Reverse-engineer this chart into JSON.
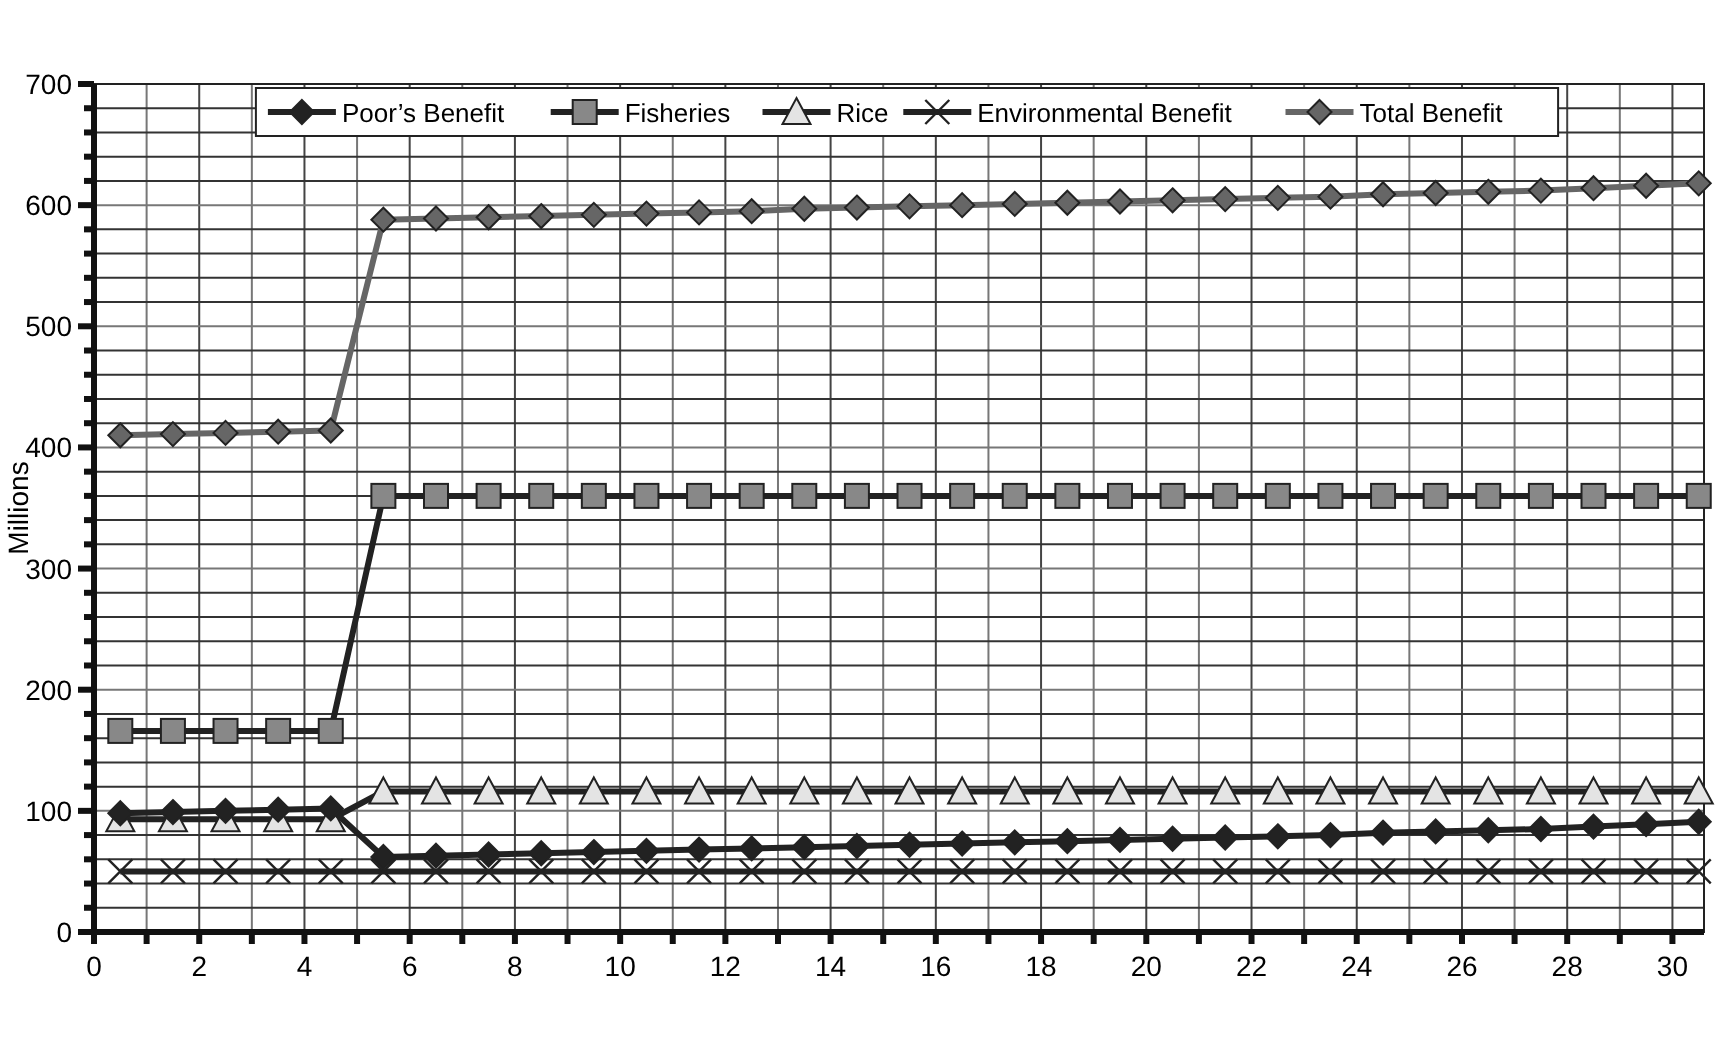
{
  "chart_data": {
    "type": "line",
    "ylabel": "Millions",
    "xlim": [
      0,
      30.6
    ],
    "ylim": [
      0,
      700
    ],
    "xticks": [
      0,
      {
        "value": 1,
        "label": null
      },
      2,
      {
        "value": 3,
        "label": null
      },
      4,
      {
        "value": 5,
        "label": null
      },
      6,
      {
        "value": 7,
        "label": null
      },
      8,
      {
        "value": 9,
        "label": null
      },
      10,
      {
        "value": 11,
        "label": null
      },
      12,
      {
        "value": 13,
        "label": null
      },
      14,
      {
        "value": 15,
        "label": null
      },
      16,
      {
        "value": 17,
        "label": null
      },
      18,
      {
        "value": 19,
        "label": null
      },
      20,
      {
        "value": 21,
        "label": null
      },
      22,
      {
        "value": 23,
        "label": null
      },
      24,
      {
        "value": 25,
        "label": null
      },
      26,
      {
        "value": 27,
        "label": null
      },
      28,
      {
        "value": 29,
        "label": null
      },
      30
    ],
    "yticks": [
      0,
      {
        "value": 20,
        "label": null
      },
      {
        "value": 40,
        "label": null
      },
      {
        "value": 60,
        "label": null
      },
      {
        "value": 80,
        "label": null
      },
      100,
      {
        "value": 120,
        "label": null
      },
      {
        "value": 140,
        "label": null
      },
      {
        "value": 160,
        "label": null
      },
      {
        "value": 180,
        "label": null
      },
      200,
      {
        "value": 220,
        "label": null
      },
      {
        "value": 240,
        "label": null
      },
      {
        "value": 260,
        "label": null
      },
      {
        "value": 280,
        "label": null
      },
      300,
      {
        "value": 320,
        "label": null
      },
      {
        "value": 340,
        "label": null
      },
      {
        "value": 360,
        "label": null
      },
      {
        "value": 380,
        "label": null
      },
      400,
      {
        "value": 420,
        "label": null
      },
      {
        "value": 440,
        "label": null
      },
      {
        "value": 460,
        "label": null
      },
      {
        "value": 480,
        "label": null
      },
      500,
      {
        "value": 520,
        "label": null
      },
      {
        "value": 540,
        "label": null
      },
      {
        "value": 560,
        "label": null
      },
      {
        "value": 580,
        "label": null
      },
      600,
      {
        "value": 620,
        "label": null
      },
      {
        "value": 640,
        "label": null
      },
      {
        "value": 660,
        "label": null
      },
      {
        "value": 680,
        "label": null
      },
      700
    ],
    "grid": true,
    "legend": "top",
    "line_style": "solid",
    "x": [
      0.5,
      1.5,
      2.5,
      3.5,
      4.5,
      5.5,
      6.5,
      7.5,
      8.5,
      9.5,
      10.5,
      11.5,
      12.5,
      13.5,
      14.5,
      15.5,
      16.5,
      17.5,
      18.5,
      19.5,
      20.5,
      21.5,
      22.5,
      23.5,
      24.5,
      25.5,
      26.5,
      27.5,
      28.5,
      29.5,
      30.5
    ],
    "series": [
      {
        "name": "Poor’s Benefit",
        "color": "#222222",
        "marker": "diamond",
        "values": [
          98,
          99,
          100,
          101,
          102,
          62,
          63,
          64,
          65,
          66,
          67,
          68,
          69,
          70,
          71,
          72,
          73,
          74,
          75,
          76,
          77,
          78,
          79,
          80,
          82,
          83,
          84,
          85,
          87,
          89,
          91
        ]
      },
      {
        "name": "Fisheries",
        "color": "#222222",
        "marker": "square",
        "values": [
          166,
          166,
          166,
          166,
          166,
          360,
          360,
          360,
          360,
          360,
          360,
          360,
          360,
          360,
          360,
          360,
          360,
          360,
          360,
          360,
          360,
          360,
          360,
          360,
          360,
          360,
          360,
          360,
          360,
          360,
          360
        ]
      },
      {
        "name": "Rice",
        "color": "#222222",
        "marker": "triangle",
        "values": [
          93,
          93,
          93,
          93,
          93,
          116,
          116,
          116,
          116,
          116,
          116,
          116,
          116,
          116,
          116,
          116,
          116,
          116,
          116,
          116,
          116,
          116,
          116,
          116,
          116,
          116,
          116,
          116,
          116,
          116,
          116
        ]
      },
      {
        "name": "Environmental Benefit",
        "color": "#222222",
        "marker": "cross",
        "values": [
          50,
          50,
          50,
          50,
          50,
          50,
          50,
          50,
          50,
          50,
          50,
          50,
          50,
          50,
          50,
          50,
          50,
          50,
          50,
          50,
          50,
          50,
          50,
          50,
          50,
          50,
          50,
          50,
          50,
          50,
          50
        ]
      },
      {
        "name": "Total Benefit",
        "color": "#666666",
        "marker": "diamond",
        "values": [
          410,
          411,
          412,
          413,
          414,
          588,
          589,
          590,
          591,
          592,
          593,
          594,
          595,
          597,
          598,
          599,
          600,
          601,
          602,
          603,
          604,
          605,
          606,
          607,
          609,
          610,
          611,
          612,
          614,
          616,
          618
        ]
      }
    ]
  }
}
